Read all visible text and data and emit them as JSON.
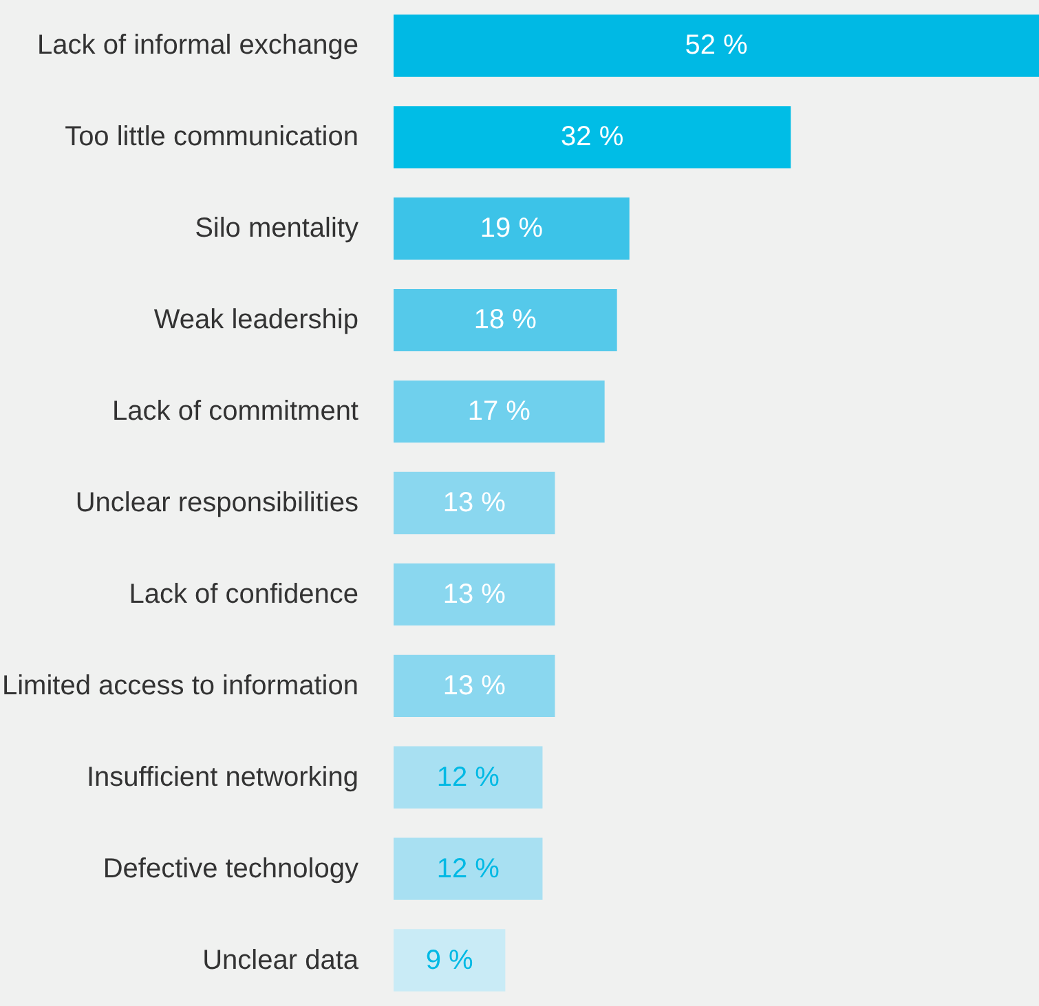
{
  "chart_data": {
    "type": "bar",
    "orientation": "horizontal",
    "xlim": [
      0,
      52
    ],
    "tick_labels": "y",
    "categories": [
      "Lack of informal exchange",
      "Too little communication",
      "Silo mentality",
      "Weak leadership",
      "Lack of commitment",
      "Unclear responsibilities",
      "Lack of confidence",
      "Limited access to information",
      "Insufficient networking",
      "Defective technology",
      "Unclear data"
    ],
    "values": [
      52,
      32,
      19,
      18,
      17,
      13,
      13,
      13,
      12,
      12,
      9
    ],
    "value_labels": [
      "52 %",
      "32 %",
      "19 %",
      "18 %",
      "17 %",
      "13 %",
      "13 %",
      "13 %",
      "12 %",
      "12 %",
      "9 %"
    ],
    "colors": [
      "#00b9e4",
      "#00bde6",
      "#3cc3e8",
      "#55c9ea",
      "#6fd0ed",
      "#8ad7ef",
      "#8ad7ef",
      "#8ad7ef",
      "#a8e0f2",
      "#a8e0f2",
      "#c9ebf6"
    ]
  }
}
